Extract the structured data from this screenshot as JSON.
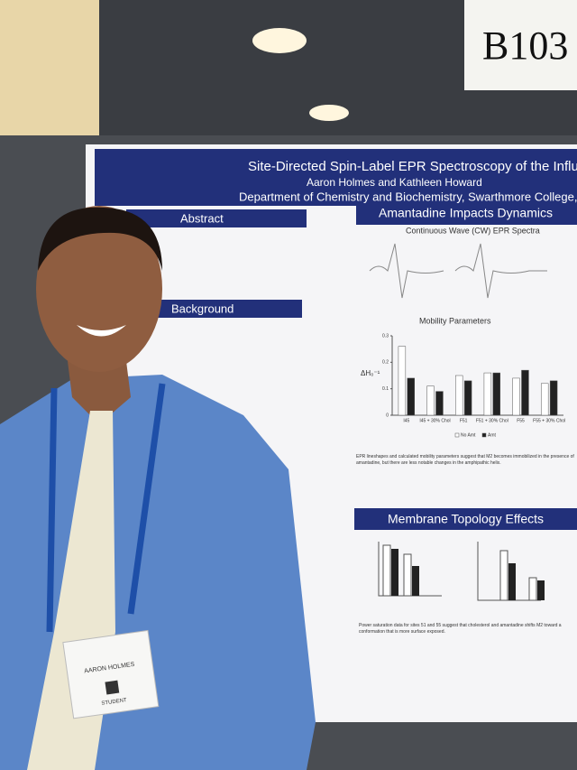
{
  "sign": "B103",
  "poster": {
    "title": "Site-Directed Spin-Label EPR Spectroscopy of the Influen",
    "authors": "Aaron Holmes and Kathleen Howard",
    "affiliation": "Department of Chemistry and Biochemistry, Swarthmore College, Sw",
    "sections": {
      "abstract": "Abstract",
      "background": "Background",
      "dynamics": "Amantadine Impacts Dynamics",
      "topology": "Membrane Topology Effects"
    },
    "epr_title": "Continuous Wave (CW) EPR Spectra",
    "mobility": {
      "type": "bar",
      "title": "Mobility Parameters",
      "y_label": "ΔH₀⁻¹",
      "categories": [
        "I45",
        "I45 + 30% Chol",
        "F51",
        "F51 + 30% Chol",
        "F55",
        "F55 + 30% Chol"
      ],
      "series": [
        {
          "name": "No Amt",
          "color": "#ffffff",
          "values": [
            0.26,
            0.11,
            0.15,
            0.16,
            0.14,
            0.12
          ]
        },
        {
          "name": "Amt",
          "color": "#222222",
          "values": [
            0.14,
            0.09,
            0.13,
            0.16,
            0.17,
            0.13
          ]
        }
      ],
      "ylim": [
        0,
        0.3
      ],
      "yticks": [
        0,
        0.1,
        0.2,
        0.3
      ]
    },
    "dynamics_caption": "EPR lineshapes and calculated mobility parameters suggest that M2 becomes immobilized in the presence of amantadine, but there are less notable changes in the amphipathic helix.",
    "topology_caption": "Power saturation data for sites 51 and 55 suggest that cholesterol and amantadine shifts M2 toward a conformation that is more surface exposed."
  },
  "badge": {
    "name": "AARON HOLMES",
    "role": "STUDENT"
  }
}
